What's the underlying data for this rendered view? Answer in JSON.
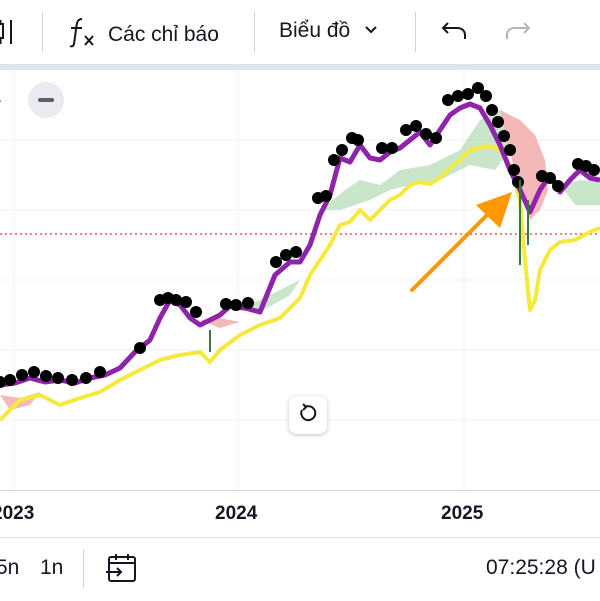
{
  "toolbar": {
    "indicators_label": "Các chỉ báo",
    "chart_type_label": "Biểu đồ",
    "icons": [
      "candles-icon",
      "fx-icon",
      "chevron-down-icon",
      "undo-icon",
      "redo-icon"
    ]
  },
  "time_axis": {
    "labels": [
      "2023",
      "2024",
      "2025"
    ]
  },
  "bottom_bar": {
    "range_5y": "5n",
    "range_1y": "1n",
    "clock": "07:25:28 (U"
  },
  "colors": {
    "price_black": "#000000",
    "price_purple": "#8e24aa",
    "cloud_green": "#a5d6a7",
    "cloud_red": "#ef9a9a",
    "baseline_yellow": "#f5e93b",
    "dotted_line": "#e53935",
    "arrow": "#ff9800"
  }
}
